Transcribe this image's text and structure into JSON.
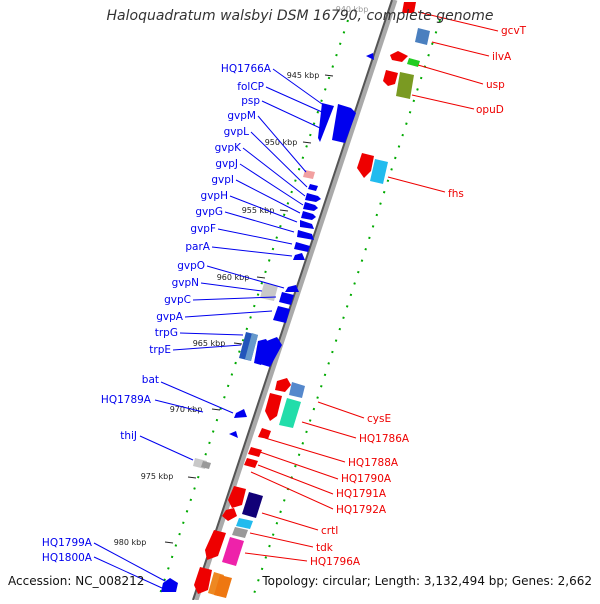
{
  "header": {
    "title": "Haloquadratum walsbyi DSM 16790, complete genome"
  },
  "footer": {
    "accession": "Accession: NC_008212",
    "topology": "Topology: circular; Length: 3,132,494 bp; Genes: 2,662"
  },
  "ticks": [
    {
      "label": "940 kbp"
    },
    {
      "label": "945 kbp"
    },
    {
      "label": "950 kbp"
    },
    {
      "label": "955 kbp"
    },
    {
      "label": "960 kbp"
    },
    {
      "label": "965 kbp"
    },
    {
      "label": "970 kbp"
    },
    {
      "label": "975 kbp"
    },
    {
      "label": "980 kbp"
    }
  ],
  "left_labels": [
    "HQ1766A",
    "folCP",
    "psp",
    "gvpM",
    "gvpL",
    "gvpK",
    "gvpJ",
    "gvpI",
    "gvpH",
    "gvpG",
    "gvpF",
    "parA",
    "gvpO",
    "gvpN",
    "gvpC",
    "gvpA",
    "trpG",
    "trpE",
    "bat",
    "HQ1789A",
    "thiJ",
    "HQ1799A",
    "HQ1800A"
  ],
  "right_labels": [
    "gcvT",
    "ilvA",
    "usp",
    "opuD",
    "fhs",
    "cysE",
    "HQ1786A",
    "HQ1788A",
    "HQ1790A",
    "HQ1791A",
    "HQ1792A",
    "crtI",
    "tdk",
    "HQ1796A"
  ],
  "colors": {
    "left_strand": "#0000ee",
    "right_strand": "#ee0000",
    "tick_green": "#00aa00",
    "backbone": "#888888"
  }
}
